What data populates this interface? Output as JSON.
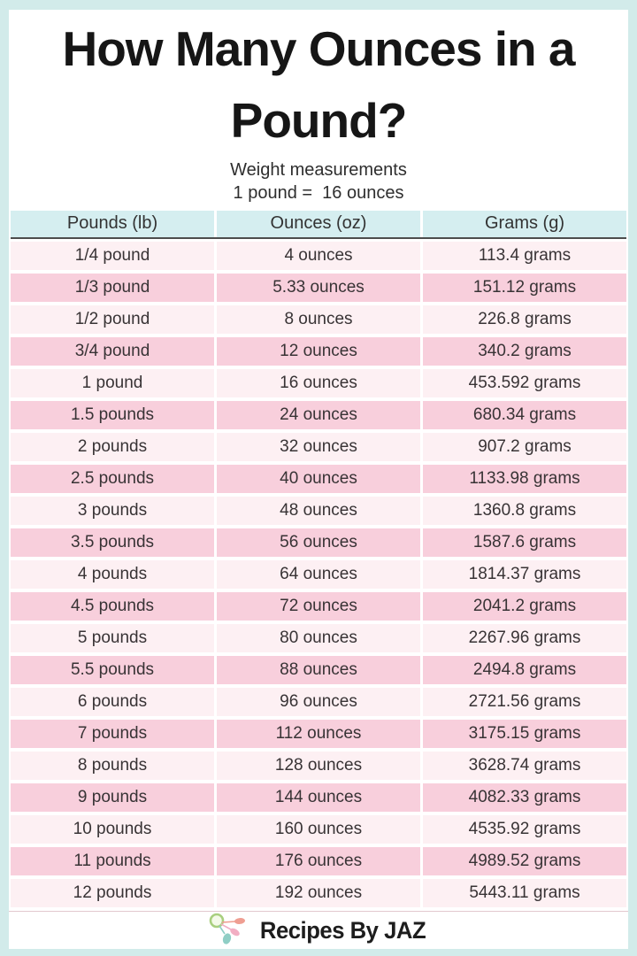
{
  "poster": {
    "title_line1": "How Many Ounces in a",
    "title_line2": "Pound?",
    "subtitle": "Weight measurements",
    "equation": "1 pound =  16 ounces"
  },
  "chart_data": {
    "type": "table",
    "title": "How Many Ounces in a Pound?",
    "columns": [
      "Pounds (lb)",
      "Ounces (oz)",
      "Grams (g)"
    ],
    "rows": [
      [
        "1/4 pound",
        "4 ounces",
        "113.4 grams"
      ],
      [
        "1/3 pound",
        "5.33 ounces",
        "151.12 grams"
      ],
      [
        "1/2 pound",
        "8 ounces",
        "226.8 grams"
      ],
      [
        "3/4 pound",
        "12 ounces",
        "340.2 grams"
      ],
      [
        "1 pound",
        "16 ounces",
        "453.592 grams"
      ],
      [
        "1.5 pounds",
        "24 ounces",
        "680.34 grams"
      ],
      [
        "2 pounds",
        "32 ounces",
        "907.2 grams"
      ],
      [
        "2.5 pounds",
        "40 ounces",
        "1133.98 grams"
      ],
      [
        "3 pounds",
        "48 ounces",
        "1360.8 grams"
      ],
      [
        "3.5 pounds",
        "56 ounces",
        "1587.6 grams"
      ],
      [
        "4 pounds",
        "64 ounces",
        "1814.37 grams"
      ],
      [
        "4.5 pounds",
        "72 ounces",
        "2041.2 grams"
      ],
      [
        "5 pounds",
        "80 ounces",
        "2267.96 grams"
      ],
      [
        "5.5 pounds",
        "88 ounces",
        "2494.8 grams"
      ],
      [
        "6 pounds",
        "96 ounces",
        "2721.56 grams"
      ],
      [
        "7 pounds",
        "112 ounces",
        "3175.15 grams"
      ],
      [
        "8 pounds",
        "128 ounces",
        "3628.74 grams"
      ],
      [
        "9 pounds",
        "144 ounces",
        "4082.33 grams"
      ],
      [
        "10 pounds",
        "160 ounces",
        "4535.92 grams"
      ],
      [
        "11 pounds",
        "176 ounces",
        "4989.52 grams"
      ],
      [
        "12 pounds",
        "192 ounces",
        "5443.11 grams"
      ]
    ]
  },
  "footer": {
    "brand": "Recipes By JAZ",
    "logo": "measuring-spoons-icon"
  },
  "colors": {
    "border": "#d2ebea",
    "header_bg": "#d5eef0",
    "row_pink": "#f8cfdc",
    "row_light": "#fdf0f3",
    "header_rule": "#4d4d4d",
    "footer_rule": "#e3c8ce",
    "bottom_accent": "#b5dfda",
    "text": "#383335",
    "title_text": "#161616"
  }
}
